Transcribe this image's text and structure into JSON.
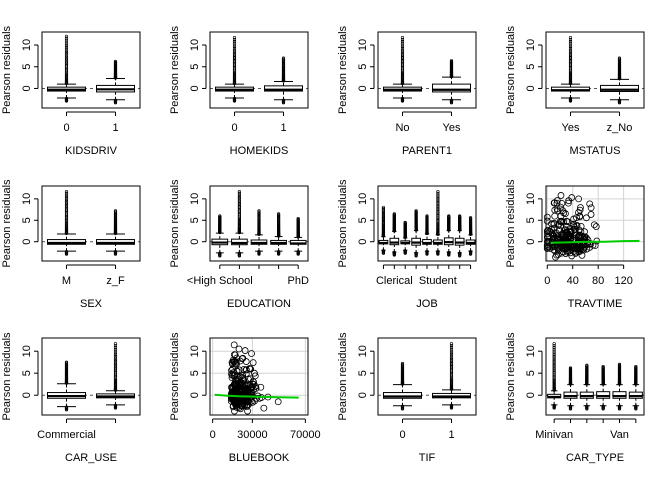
{
  "ylabel": "Pearson residuals",
  "yticks": [
    0,
    5,
    10
  ],
  "ylim": [
    -4.5,
    13
  ],
  "chart_data": [
    {
      "type": "box",
      "xlabel": "KIDSDRIV",
      "categories": [
        "0",
        "1"
      ],
      "boxes": [
        {
          "whisker_low": -2.2,
          "q1": -0.6,
          "median": -0.3,
          "q3": 0.3,
          "whisker_high": 1.0,
          "outlier_max": 12.0
        },
        {
          "whisker_low": -2.6,
          "q1": -0.8,
          "median": -0.2,
          "q3": 0.7,
          "whisker_high": 2.3,
          "outlier_max": 6.2
        }
      ]
    },
    {
      "type": "box",
      "xlabel": "HOMEKIDS",
      "categories": [
        "0",
        "1"
      ],
      "boxes": [
        {
          "whisker_low": -2.2,
          "q1": -0.6,
          "median": -0.3,
          "q3": 0.3,
          "whisker_high": 1.0,
          "outlier_max": 11.7
        },
        {
          "whisker_low": -2.6,
          "q1": -0.6,
          "median": -0.3,
          "q3": 0.6,
          "whisker_high": 1.6,
          "outlier_max": 7.0
        }
      ]
    },
    {
      "type": "box",
      "xlabel": "PARENT1",
      "categories": [
        "No",
        "Yes"
      ],
      "boxes": [
        {
          "whisker_low": -2.2,
          "q1": -0.6,
          "median": -0.3,
          "q3": 0.3,
          "whisker_high": 1.0,
          "outlier_max": 11.7
        },
        {
          "whisker_low": -2.6,
          "q1": -0.8,
          "median": -0.3,
          "q3": 1.0,
          "whisker_high": 2.6,
          "outlier_max": 6.4
        }
      ]
    },
    {
      "type": "box",
      "xlabel": "MSTATUS",
      "categories": [
        "Yes",
        "z_No"
      ],
      "boxes": [
        {
          "whisker_low": -2.2,
          "q1": -0.6,
          "median": -0.4,
          "q3": 0.3,
          "whisker_high": 1.0,
          "outlier_max": 11.7
        },
        {
          "whisker_low": -2.6,
          "q1": -0.7,
          "median": -0.3,
          "q3": 0.7,
          "whisker_high": 2.1,
          "outlier_max": 7.0
        }
      ]
    },
    {
      "type": "box",
      "xlabel": "SEX",
      "categories": [
        "M",
        "z_F"
      ],
      "boxes": [
        {
          "whisker_low": -2.2,
          "q1": -0.6,
          "median": -0.3,
          "q3": 0.5,
          "whisker_high": 1.8,
          "outlier_max": 11.7
        },
        {
          "whisker_low": -2.2,
          "q1": -0.6,
          "median": -0.3,
          "q3": 0.5,
          "whisker_high": 1.8,
          "outlier_max": 7.2
        }
      ]
    },
    {
      "type": "box",
      "xlabel": "EDUCATION",
      "categories": [
        "<High School",
        "PhD"
      ],
      "category_positions": [
        1,
        5
      ],
      "boxes": [
        {
          "whisker_low": -2.6,
          "q1": -0.7,
          "median": -0.2,
          "q3": 0.6,
          "whisker_high": 2.0,
          "outlier_max": 6.0
        },
        {
          "whisker_low": -2.6,
          "q1": -0.7,
          "median": -0.3,
          "q3": 0.6,
          "whisker_high": 2.0,
          "outlier_max": 11.7
        },
        {
          "whisker_low": -2.2,
          "q1": -0.6,
          "median": -0.3,
          "q3": 0.4,
          "whisker_high": 1.6,
          "outlier_max": 7.2
        },
        {
          "whisker_low": -2.2,
          "q1": -0.6,
          "median": -0.3,
          "q3": 0.3,
          "whisker_high": 1.2,
          "outlier_max": 6.5
        },
        {
          "whisker_low": -2.2,
          "q1": -0.6,
          "median": -0.4,
          "q3": 0.3,
          "whisker_high": 1.0,
          "outlier_max": 5.4
        }
      ]
    },
    {
      "type": "box",
      "xlabel": "JOB",
      "categories": [
        "Clerical",
        "Student"
      ],
      "category_positions": [
        2,
        6
      ],
      "boxes": [
        {
          "whisker_low": -2.0,
          "q1": -0.5,
          "median": -0.3,
          "q3": 0.3,
          "whisker_high": 1.2,
          "outlier_max": 8.0
        },
        {
          "whisker_low": -2.4,
          "q1": -0.7,
          "median": -0.2,
          "q3": 0.8,
          "whisker_high": 2.4,
          "outlier_max": 6.5
        },
        {
          "whisker_low": -2.0,
          "q1": -0.5,
          "median": -0.3,
          "q3": 0.2,
          "whisker_high": 0.9,
          "outlier_max": 4.5
        },
        {
          "whisker_low": -2.6,
          "q1": -0.8,
          "median": -0.2,
          "q3": 0.8,
          "whisker_high": 2.6,
          "outlier_max": 7.2
        },
        {
          "whisker_low": -2.2,
          "q1": -0.6,
          "median": -0.3,
          "q3": 0.5,
          "whisker_high": 1.8,
          "outlier_max": 6.0
        },
        {
          "whisker_low": -2.2,
          "q1": -0.6,
          "median": -0.3,
          "q3": 0.4,
          "whisker_high": 1.6,
          "outlier_max": 11.7
        },
        {
          "whisker_low": -2.4,
          "q1": -0.7,
          "median": -0.1,
          "q3": 0.9,
          "whisker_high": 2.6,
          "outlier_max": 6.0
        },
        {
          "whisker_low": -2.6,
          "q1": -0.8,
          "median": -0.2,
          "q3": 0.8,
          "whisker_high": 2.6,
          "outlier_max": 6.0
        },
        {
          "whisker_low": -2.2,
          "q1": -0.6,
          "median": -0.3,
          "q3": 0.4,
          "whisker_high": 1.6,
          "outlier_max": 5.6
        }
      ]
    },
    {
      "type": "scatter",
      "xlabel": "TRAVTIME",
      "xlim": [
        -2,
        152
      ],
      "xticks": [
        0,
        40,
        80,
        120
      ],
      "grid": true,
      "trend": [
        [
          5,
          -0.25
        ],
        [
          30,
          -0.15
        ],
        [
          60,
          -0.05
        ],
        [
          90,
          0.0
        ],
        [
          120,
          0.15
        ],
        [
          145,
          0.2
        ]
      ]
    },
    {
      "type": "box",
      "xlabel": "CAR_USE",
      "categories": [
        "Commercial"
      ],
      "boxes": [
        {
          "whisker_low": -2.6,
          "q1": -0.7,
          "median": -0.2,
          "q3": 0.6,
          "whisker_high": 2.6,
          "outlier_max": 7.5
        },
        {
          "whisker_low": -2.2,
          "q1": -0.6,
          "median": -0.3,
          "q3": 0.3,
          "whisker_high": 1.0,
          "outlier_max": 11.7
        }
      ]
    },
    {
      "type": "scatter",
      "xlabel": "BLUEBOOK",
      "xlim": [
        -2000,
        72000
      ],
      "xticks": [
        0,
        30000,
        70000
      ],
      "grid": true,
      "trend": [
        [
          1500,
          0.1
        ],
        [
          10000,
          -0.1
        ],
        [
          20000,
          -0.25
        ],
        [
          35000,
          -0.35
        ],
        [
          50000,
          -0.45
        ],
        [
          65000,
          -0.55
        ]
      ]
    },
    {
      "type": "box",
      "xlabel": "TIF",
      "categories": [
        "0",
        "1"
      ],
      "boxes": [
        {
          "whisker_low": -2.4,
          "q1": -0.7,
          "median": -0.3,
          "q3": 0.6,
          "whisker_high": 2.4,
          "outlier_max": 7.2
        },
        {
          "whisker_low": -2.2,
          "q1": -0.6,
          "median": -0.3,
          "q3": 0.4,
          "whisker_high": 1.2,
          "outlier_max": 11.7
        }
      ]
    },
    {
      "type": "box",
      "xlabel": "CAR_TYPE",
      "categories": [
        "Minivan",
        "Van"
      ],
      "category_positions": [
        1,
        5
      ],
      "boxes": [
        {
          "whisker_low": -2.2,
          "q1": -0.6,
          "median": -0.4,
          "q3": 0.2,
          "whisker_high": 1.0,
          "outlier_max": 11.7
        },
        {
          "whisker_low": -2.4,
          "q1": -0.7,
          "median": -0.2,
          "q3": 0.7,
          "whisker_high": 2.4,
          "outlier_max": 6.2
        },
        {
          "whisker_low": -2.4,
          "q1": -0.7,
          "median": -0.2,
          "q3": 0.7,
          "whisker_high": 2.4,
          "outlier_max": 6.8
        },
        {
          "whisker_low": -2.4,
          "q1": -0.7,
          "median": -0.2,
          "q3": 0.8,
          "whisker_high": 2.4,
          "outlier_max": 6.5
        },
        {
          "whisker_low": -2.4,
          "q1": -0.7,
          "median": -0.2,
          "q3": 0.8,
          "whisker_high": 2.4,
          "outlier_max": 7.0
        },
        {
          "whisker_low": -2.4,
          "q1": -0.7,
          "median": -0.2,
          "q3": 0.7,
          "whisker_high": 2.4,
          "outlier_max": 6.5
        }
      ]
    }
  ],
  "colors": {
    "trend": "#00cc00",
    "grid": "#d3d3d3",
    "refline": "#555555"
  }
}
